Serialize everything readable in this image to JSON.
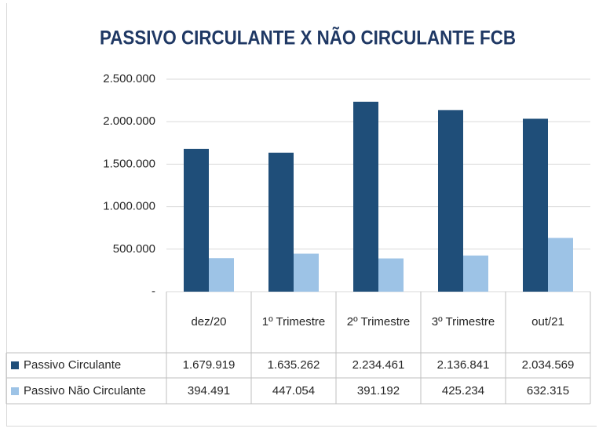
{
  "chart_data": {
    "type": "bar",
    "title": "PASSIVO CIRCULANTE X NÃO CIRCULANTE FCB",
    "categories": [
      "dez/20",
      "1º Trimestre",
      "2º Trimestre",
      "3º Trimestre",
      "out/21"
    ],
    "series": [
      {
        "name": "Passivo Circulante",
        "color": "#1f4e79",
        "values": [
          1679919,
          1635262,
          2234461,
          2136841,
          2034569
        ],
        "value_labels": [
          "1.679.919",
          "1.635.262",
          "2.234.461",
          "2.136.841",
          "2.034.569"
        ]
      },
      {
        "name": "Passivo Não Circulante",
        "color": "#9dc3e6",
        "values": [
          394491,
          447054,
          391192,
          425234,
          632315
        ],
        "value_labels": [
          "394.491",
          "447.054",
          "391.192",
          "425.234",
          "632.315"
        ]
      }
    ],
    "ylim": [
      0,
      2500000
    ],
    "yticks": [
      {
        "value": 0,
        "label": "-"
      },
      {
        "value": 500000,
        "label": "500.000"
      },
      {
        "value": 1000000,
        "label": "1.000.000"
      },
      {
        "value": 1500000,
        "label": "1.500.000"
      },
      {
        "value": 2000000,
        "label": "2.000.000"
      },
      {
        "value": 2500000,
        "label": "2.500.000"
      }
    ],
    "grid": true
  }
}
